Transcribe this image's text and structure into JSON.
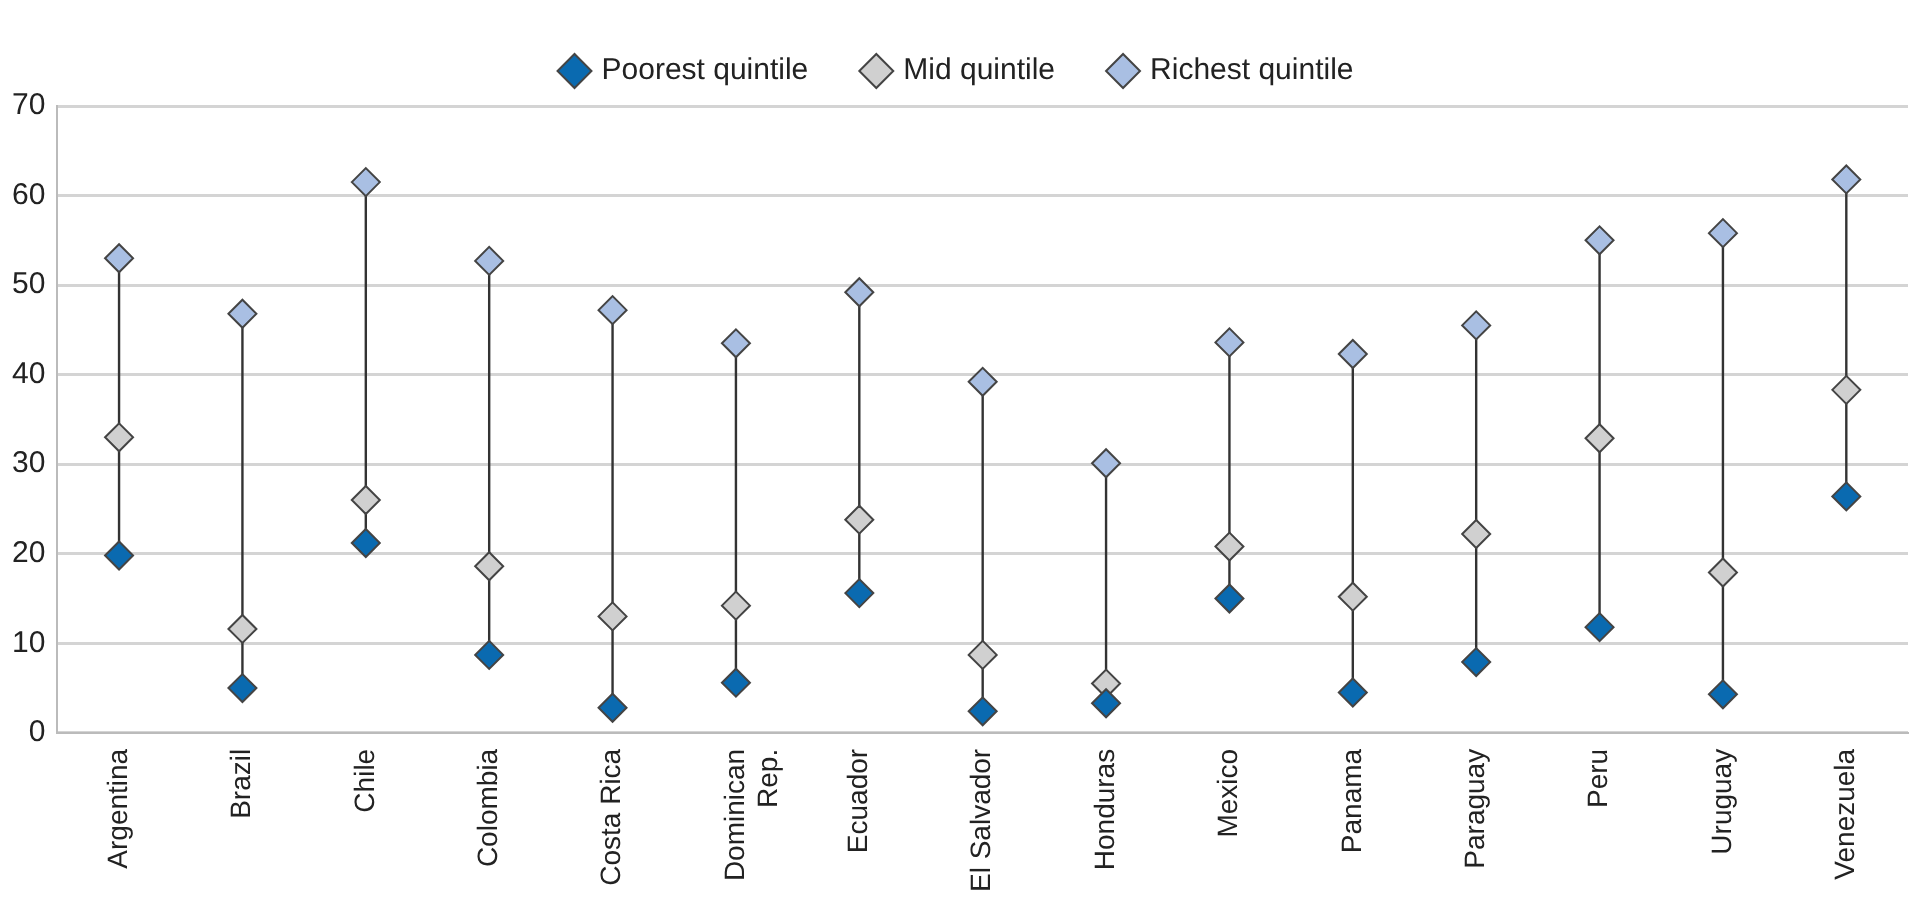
{
  "chart_data": {
    "type": "scatter",
    "categories": [
      "Argentina",
      "Brazil",
      "Chile",
      "Colombia",
      "Costa Rica",
      "Dominican Rep.",
      "Ecuador",
      "El Salvador",
      "Honduras",
      "Mexico",
      "Panama",
      "Paraguay",
      "Peru",
      "Uruguay",
      "Venezuela"
    ],
    "series": [
      {
        "name": "Poorest quintile",
        "color": "#0a6ab0",
        "values": [
          19.8,
          5,
          21.2,
          8.7,
          2.8,
          5.6,
          15.6,
          2.4,
          3.3,
          15,
          4.5,
          7.9,
          11.8,
          4.3,
          26.4
        ]
      },
      {
        "name": "Mid quintile",
        "color": "#d0d0d0",
        "values": [
          33,
          11.6,
          26,
          18.6,
          13,
          14.2,
          23.8,
          8.7,
          5.5,
          20.8,
          15.2,
          22.2,
          32.9,
          17.9,
          38.3
        ]
      },
      {
        "name": "Richest quintile",
        "color": "#a9bfe3",
        "values": [
          53,
          46.8,
          61.5,
          52.7,
          47.2,
          43.5,
          49.2,
          39.2,
          30.1,
          43.6,
          42.3,
          45.5,
          55,
          55.8,
          61.8
        ]
      }
    ],
    "ylim": [
      0,
      70
    ],
    "yticks": [
      0,
      10,
      20,
      30,
      40,
      50,
      60,
      70
    ],
    "grid": "y",
    "legend": "top",
    "marker": "diamond"
  }
}
